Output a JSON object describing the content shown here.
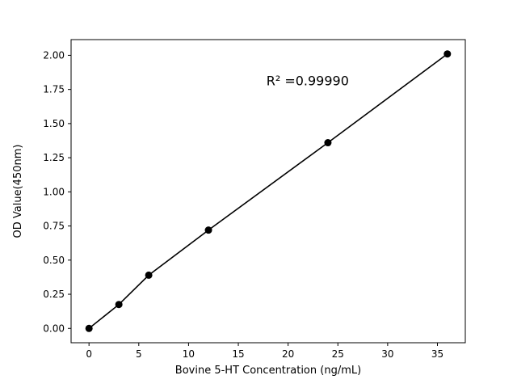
{
  "chart_data": {
    "type": "scatter",
    "title": "",
    "xlabel": "Bovine 5-HT Concentration (ng/mL)",
    "ylabel": "OD Value(450nm)",
    "annotation": "R² =0.99990",
    "x": [
      0,
      3,
      6,
      12,
      24,
      36
    ],
    "y": [
      0.0,
      0.175,
      0.39,
      0.72,
      1.36,
      2.01
    ],
    "line": "solid",
    "marker": "circle",
    "xticks": [
      0,
      5,
      10,
      15,
      20,
      25,
      30,
      35
    ],
    "xtick_labels": [
      "0",
      "5",
      "10",
      "15",
      "20",
      "25",
      "30",
      "35"
    ],
    "yticks": [
      0.0,
      0.25,
      0.5,
      0.75,
      1.0,
      1.25,
      1.5,
      1.75,
      2.0
    ],
    "ytick_labels": [
      "0.00",
      "0.25",
      "0.50",
      "0.75",
      "1.00",
      "1.25",
      "1.50",
      "1.75",
      "2.00"
    ],
    "xlim": [
      -1.8,
      37.8
    ],
    "ylim": [
      -0.105,
      2.115
    ],
    "grid": false,
    "legend": "none",
    "line_color": "#000000",
    "marker_color": "#000000",
    "background_color": "#ffffff",
    "spine_color": "#000000"
  }
}
